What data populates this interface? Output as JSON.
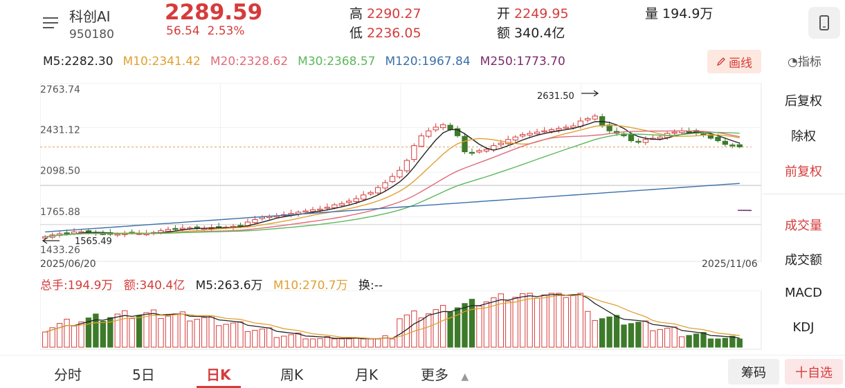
{
  "header": {
    "name": "科创AI",
    "code": "950180",
    "price": "2289.59",
    "change": "56.54",
    "change_pct": "2.53%",
    "high_label": "高",
    "high": "2290.27",
    "low_label": "低",
    "low": "2236.05",
    "open_label": "开",
    "open": "2249.95",
    "amount_label": "额",
    "amount": "340.4亿",
    "volume_label": "量",
    "volume": "194.9万"
  },
  "ma_legend": [
    {
      "text": "M5:2282.30",
      "color": "#222222"
    },
    {
      "text": "M10:2341.42",
      "color": "#e0a030"
    },
    {
      "text": "M20:2328.62",
      "color": "#e06b7a"
    },
    {
      "text": "M30:2368.57",
      "color": "#5cb85c"
    },
    {
      "text": "M120:1967.84",
      "color": "#3a6fa8"
    },
    {
      "text": "M250:1773.70",
      "color": "#7a2a6a"
    }
  ],
  "toolbar": {
    "draw_label": "画线",
    "indicator_label": "指标"
  },
  "kline": {
    "y_ticks": [
      "2763.74",
      "2431.12",
      "2098.50",
      "1765.88",
      "1433.26"
    ],
    "start_date": "2025/06/20",
    "end_date": "2025/11/06",
    "high_marker": "2631.50",
    "low_marker": "1565.49"
  },
  "volume_legend": {
    "total": "总手:194.9万",
    "amount": "额:340.4亿",
    "m5": "M5:263.6万",
    "m10": "M10:270.7万",
    "turnover": "换:--"
  },
  "right_panel": {
    "adjust": [
      "后复权",
      "除权",
      "前复权"
    ],
    "indicators": [
      "成交量",
      "成交额",
      "MACD",
      "KDJ"
    ]
  },
  "tabs": [
    "分时",
    "5日",
    "日K",
    "周K",
    "月K",
    "更多"
  ],
  "buttons": {
    "chip": "筹码",
    "watch": "十自选"
  },
  "colors": {
    "up": "#d63b3b",
    "down": "#3d7a2a",
    "accent": "#d63b3b"
  },
  "chart_data": {
    "type": "candlestick",
    "y_range": [
      1433.26,
      2763.74
    ],
    "close_approx": [
      1560,
      1575,
      1585,
      1590,
      1600,
      1602,
      1598,
      1590,
      1585,
      1580,
      1582,
      1590,
      1592,
      1588,
      1585,
      1595,
      1610,
      1620,
      1625,
      1630,
      1632,
      1630,
      1628,
      1635,
      1640,
      1638,
      1645,
      1650,
      1680,
      1700,
      1720,
      1725,
      1730,
      1740,
      1750,
      1760,
      1770,
      1780,
      1785,
      1800,
      1820,
      1830,
      1850,
      1870,
      1900,
      1920,
      1960,
      2000,
      2050,
      2100,
      2180,
      2300,
      2380,
      2420,
      2450,
      2470,
      2430,
      2380,
      2250,
      2240,
      2260,
      2270,
      2300,
      2320,
      2350,
      2370,
      2390,
      2400,
      2410,
      2420,
      2430,
      2440,
      2450,
      2460,
      2500,
      2520,
      2540,
      2460,
      2420,
      2400,
      2380,
      2340,
      2330,
      2350,
      2360,
      2370,
      2400,
      2410,
      2420,
      2415,
      2400,
      2390,
      2360,
      2340,
      2310,
      2300,
      2290
    ]
  }
}
